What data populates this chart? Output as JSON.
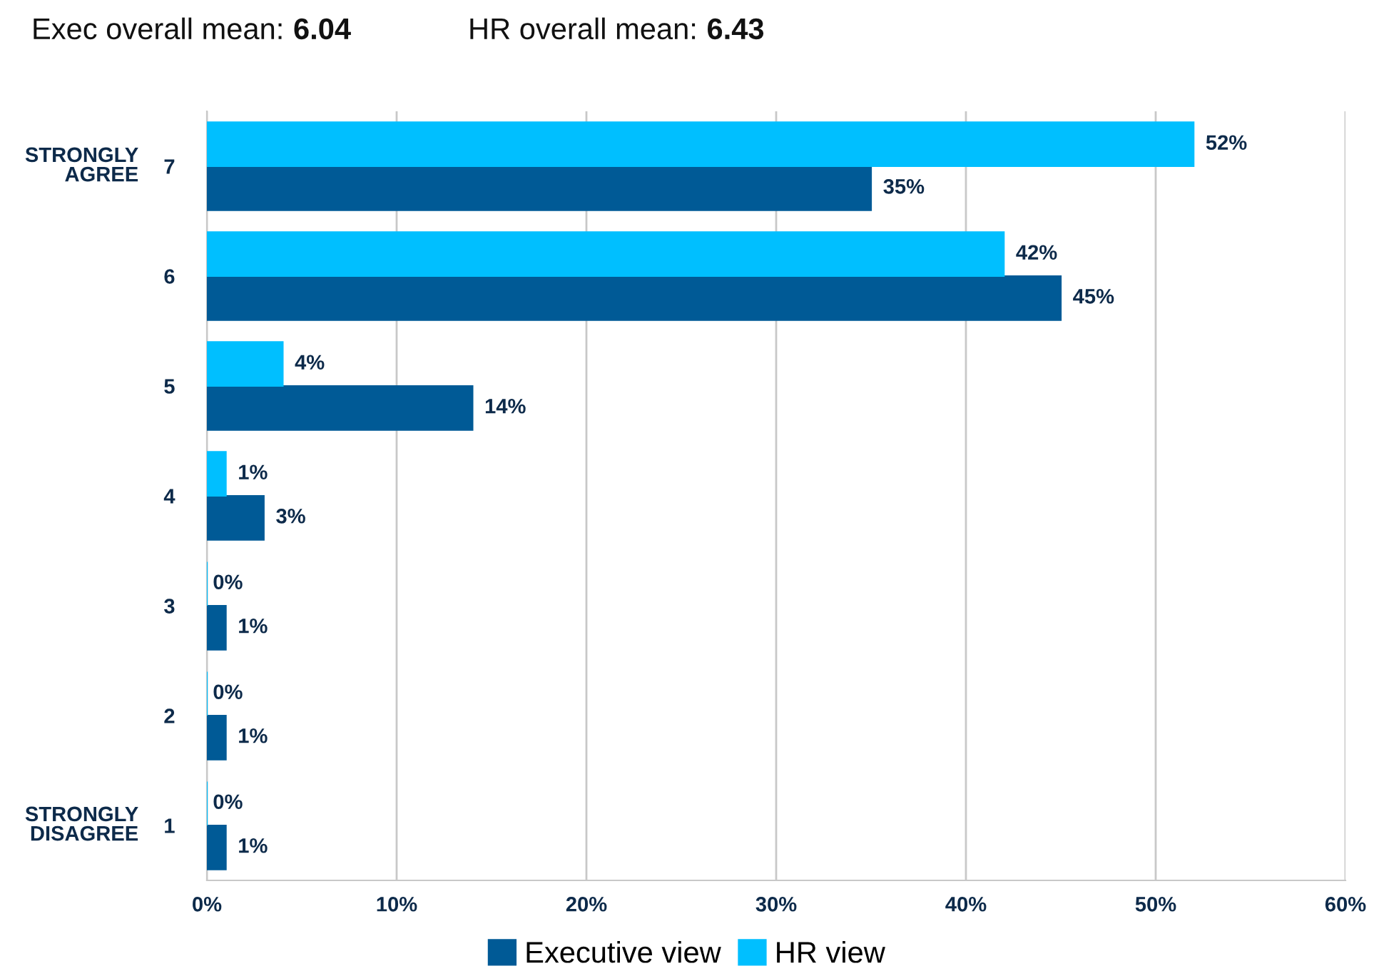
{
  "chart_data": {
    "type": "bar",
    "orientation": "horizontal",
    "title": "Exec overall mean: 6.04",
    "subtitle": "HR overall mean: 6.43",
    "categories": [
      "7",
      "6",
      "5",
      "4",
      "3",
      "2",
      "1"
    ],
    "series": [
      {
        "name": "Executive view",
        "color": "#005a96",
        "values": [
          35,
          45,
          14,
          3,
          1,
          1,
          1
        ],
        "value_labels": [
          "35%",
          "45%",
          "14%",
          "3%",
          "1%",
          "1%",
          "1%"
        ]
      },
      {
        "name": "HR view",
        "color": "#00bfff",
        "values": [
          52,
          42,
          4,
          1,
          0,
          0,
          0
        ],
        "value_labels": [
          "52%",
          "42%",
          "4%",
          "1%",
          "0%",
          "0%",
          "0%"
        ]
      }
    ],
    "annotations": [
      "STRONGLY AGREE",
      "STRONGLY DISAGREE"
    ],
    "xlim": [
      0,
      60
    ],
    "xticks": [
      {
        "value": 0,
        "label": "0%"
      },
      {
        "value": 10,
        "label": "10%"
      },
      {
        "value": 20,
        "label": "20%"
      },
      {
        "value": 30,
        "label": "30%"
      },
      {
        "value": 40,
        "label": "40%"
      },
      {
        "value": 50,
        "label": "50%"
      },
      {
        "value": 60,
        "label": "60%"
      }
    ],
    "grid": "x",
    "legend": "bottom"
  }
}
